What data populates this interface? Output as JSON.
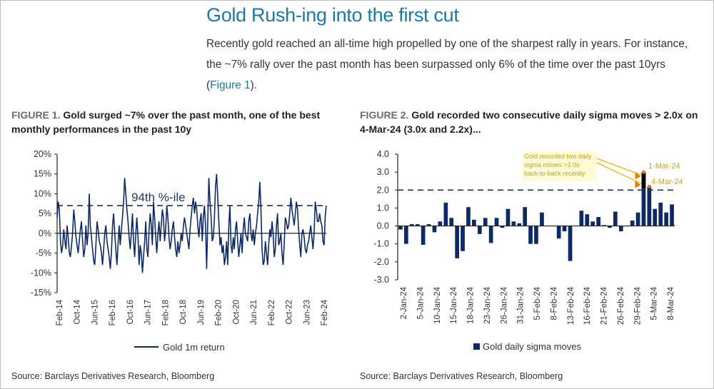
{
  "header": {
    "title": "Gold Rush-ing into the first cut",
    "intro_text": "Recently gold reached an all-time high propelled by one of the sharpest rally in years. For instance, the ~7% rally over the past month has been surpassed only 6% of the time over the past 10yrs (",
    "intro_link": "Figure 1",
    "intro_tail": ")."
  },
  "figures": {
    "fig1": {
      "num": "FIGURE 1.",
      "title": " Gold surged ~7% over the past month, one of the best monthly performances in the past 10y",
      "source": "Source: Barclays Derivatives Research, Bloomberg"
    },
    "fig2": {
      "num": "FIGURE 2.",
      "title": " Gold recorded two consecutive daily sigma moves > 2.0x on 4-Mar-24 (3.0x and 2.2x)...",
      "source": "Source: Barclays Derivatives Research, Bloomberg"
    }
  },
  "colors": {
    "series": "#0d2a66",
    "accent": "#1a7aa6",
    "annotation": "#e6b800",
    "arrow": "#f07800"
  },
  "chart_data": [
    {
      "type": "line",
      "title": "Gold surged ~7% over the past month, one of the best monthly performances in the past 10y",
      "xlabel": "",
      "ylabel": "",
      "ylim": [
        -15,
        20
      ],
      "yticks": [
        "20%",
        "15%",
        "10%",
        "5%",
        "0%",
        "-5%",
        "-10%",
        "-15%"
      ],
      "yvalues": [
        20,
        15,
        10,
        5,
        0,
        -5,
        -10,
        -15
      ],
      "xticks": [
        "Feb-14",
        "Oct-14",
        "Jun-15",
        "Feb-16",
        "Oct-16",
        "Jun-17",
        "Feb-18",
        "Oct-18",
        "Jun-19",
        "Feb-20",
        "Oct-20",
        "Jun-21",
        "Feb-22",
        "Oct-22",
        "Jun-23",
        "Feb-24"
      ],
      "reference_line": {
        "value": 7,
        "label": "94th %-ile"
      },
      "legend": {
        "label": "Gold 1m return",
        "position": "bottom"
      },
      "series": [
        {
          "name": "Gold 1m return",
          "values": [
            4,
            8,
            6,
            -2,
            -5,
            -3,
            1,
            -2,
            -4,
            2,
            -1,
            -5,
            -6,
            -3,
            0,
            6,
            3,
            -1,
            -3,
            -5,
            -2,
            1,
            3,
            -2,
            -6,
            -4,
            2,
            -3,
            0,
            10,
            2,
            -1,
            -4,
            -7,
            -8,
            -3,
            3,
            1,
            -2,
            -3,
            -5,
            -8,
            -4,
            0,
            2,
            -2,
            -4,
            -6,
            -9,
            -5,
            2,
            5,
            0,
            -4,
            -8,
            -3,
            2,
            -3,
            1,
            4,
            8,
            14,
            10,
            6,
            3,
            -1,
            -4,
            0,
            5,
            -2,
            -6,
            0,
            4,
            -1,
            -8,
            -3,
            -5,
            -10,
            -6,
            -2,
            3,
            -4,
            -6,
            1,
            5,
            2,
            -3,
            8,
            4,
            -1,
            -5,
            0,
            3,
            -2,
            2,
            6,
            4,
            -2,
            1,
            7,
            4,
            -1,
            -4,
            -2,
            1,
            3,
            -1,
            -4,
            -6,
            -2,
            -5,
            -3,
            0,
            -2,
            2,
            4,
            2,
            0,
            -2,
            -4,
            1,
            4,
            7,
            9,
            5,
            8,
            6,
            2,
            -1,
            3,
            5,
            -2,
            4,
            7,
            2,
            -9,
            3,
            14,
            8,
            4,
            -2,
            -1,
            4,
            12,
            15,
            9,
            3,
            -3,
            -1,
            -5,
            -3,
            -8,
            -6,
            -2,
            -8,
            2,
            7,
            -3,
            -5,
            -1,
            -4,
            1,
            3,
            -2,
            -6,
            -3,
            0,
            -5,
            1,
            4,
            0,
            -1,
            -2,
            3,
            5,
            0,
            -2,
            1,
            -3,
            0,
            2,
            5,
            8,
            13,
            6,
            -4,
            -8,
            -7,
            -2,
            -5,
            -8,
            -3,
            1,
            -1,
            3,
            0,
            -6,
            -4,
            2,
            5,
            -3,
            -2,
            0,
            -5,
            -8,
            -3,
            4,
            3,
            1,
            2,
            5,
            9,
            6,
            4,
            2,
            5,
            8,
            6,
            1,
            -3,
            -6,
            0,
            1,
            -1,
            -4,
            -5,
            -3,
            -2,
            0,
            2,
            -1,
            -4,
            0,
            8,
            6,
            3,
            3,
            5,
            3,
            2,
            -2,
            -3,
            4,
            7
          ]
        }
      ]
    },
    {
      "type": "bar",
      "title": "Gold recorded two consecutive daily sigma moves > 2.0x on 4-Mar-24 (3.0x and 2.2x)...",
      "xlabel": "",
      "ylabel": "",
      "ylim": [
        -3.0,
        4.0
      ],
      "yticks": [
        "4.0",
        "3.0",
        "2.0",
        "1.0",
        "0.0",
        "-1.0",
        "-2.0",
        "-3.0"
      ],
      "yvalues": [
        4,
        3,
        2,
        1,
        0,
        -1,
        -2,
        -3
      ],
      "xticks": [
        "2-Jan-24",
        "5-Jan-24",
        "10-Jan-24",
        "15-Jan-24",
        "18-Jan-24",
        "23-Jan-24",
        "26-Jan-24",
        "31-Jan-24",
        "5-Feb-24",
        "8-Feb-24",
        "13-Feb-24",
        "16-Feb-24",
        "21-Feb-24",
        "26-Feb-24",
        "29-Feb-24",
        "5-Mar-24",
        "8-Mar-24"
      ],
      "reference_line": {
        "value": 2.0
      },
      "legend": {
        "label": "Gold daily sigma moves",
        "position": "bottom"
      },
      "annotations": [
        {
          "text_lines": [
            "Gold recorded two daily",
            "sigma moves >2.0x",
            "back-to-back recently"
          ]
        },
        {
          "text": "1-Mar-24"
        },
        {
          "text": "4-Mar-24"
        }
      ],
      "series": [
        {
          "name": "Gold daily sigma moves",
          "values": [
            -0.2,
            -1.0,
            0.1,
            0.1,
            -1.05,
            0.1,
            -0.35,
            0.25,
            1.3,
            0.45,
            -1.8,
            -1.4,
            1.05,
            0.35,
            -0.45,
            0.45,
            -0.95,
            0.45,
            -0.1,
            0.95,
            0.25,
            0.15,
            1.05,
            -1.0,
            -1.0,
            0.75,
            0.0,
            0.0,
            -0.7,
            -0.3,
            -1.95,
            0.0,
            0.85,
            0.65,
            0.25,
            0.5,
            0.05,
            -0.1,
            0.8,
            -0.3,
            0.0,
            0.3,
            0.75,
            3.0,
            2.2,
            0.95,
            1.3,
            0.75,
            1.2
          ]
        }
      ]
    }
  ]
}
